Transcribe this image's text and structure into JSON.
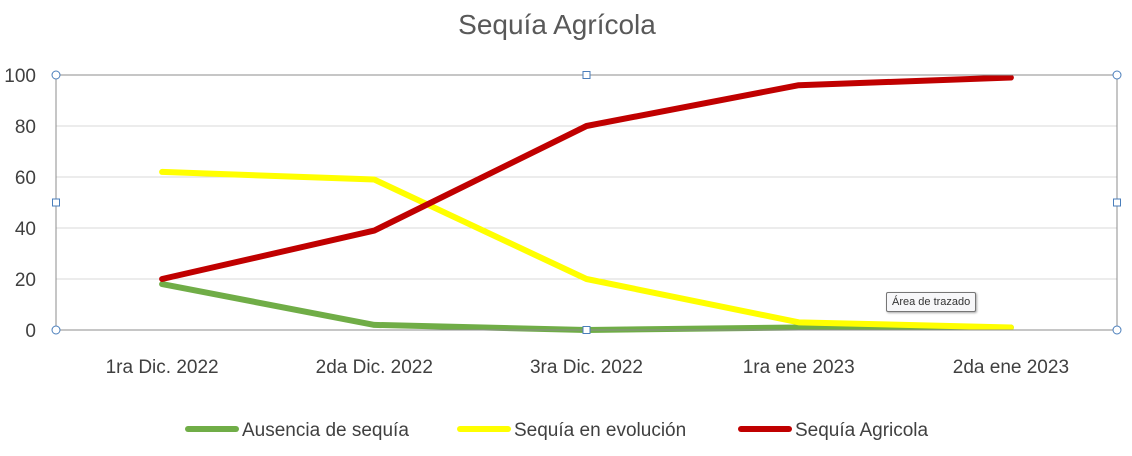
{
  "chart_data": {
    "type": "line",
    "title": "Sequía Agrícola",
    "categories": [
      "1ra Dic. 2022",
      "2da Dic. 2022",
      "3ra Dic. 2022",
      "1ra ene 2023",
      "2da ene 2023"
    ],
    "ylim": [
      0,
      100
    ],
    "yticks": [
      0,
      20,
      40,
      60,
      80,
      100
    ],
    "grid": true,
    "legend_position": "bottom",
    "series": [
      {
        "name": "Ausencia de sequía",
        "color": "#70ad47",
        "values": [
          18,
          2,
          0,
          1,
          1
        ]
      },
      {
        "name": "Sequía en evolución",
        "color": "#ffff00",
        "values": [
          62,
          59,
          20,
          3,
          1
        ]
      },
      {
        "name": "Sequía Agricola",
        "color": "#c00000",
        "values": [
          20,
          39,
          80,
          96,
          99
        ]
      }
    ]
  },
  "tooltip": {
    "text": "Área de trazado"
  }
}
